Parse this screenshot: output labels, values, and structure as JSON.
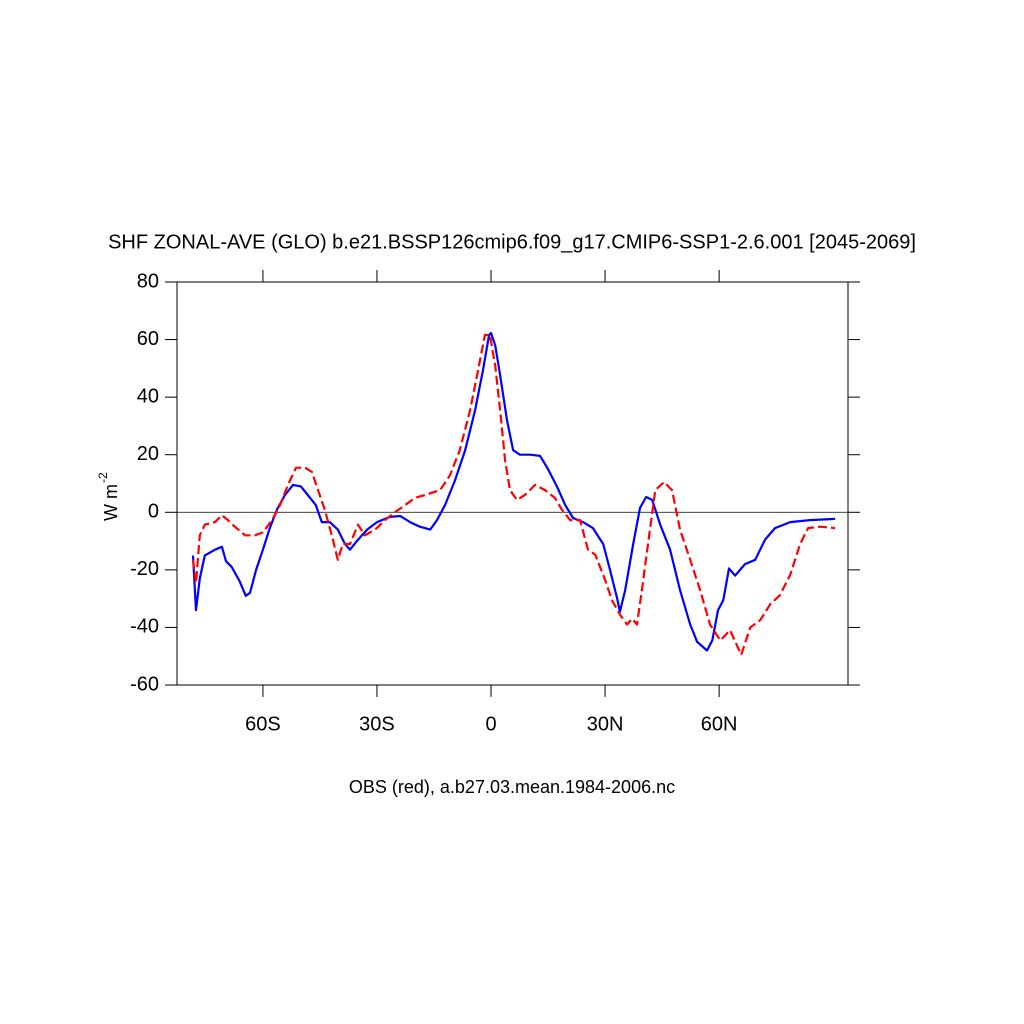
{
  "chart_data": {
    "type": "line",
    "title": "SHF ZONAL-AVE (GLO) b.e21.BSSP126cmip6.f09_g17.CMIP6-SSP1-2.6.001 [2045-2069]",
    "xlabel": "OBS (red), a.b27.03.mean.1984-2006.nc",
    "ylabel": "W m",
    "ylabel_superscript": "-2",
    "xlim": [
      -82.6,
      93.9
    ],
    "ylim": [
      -60,
      80
    ],
    "xticks": [
      {
        "value": -60,
        "label": "60S"
      },
      {
        "value": -30,
        "label": "30S"
      },
      0,
      {
        "value": 30,
        "label": "30N"
      },
      {
        "value": 60,
        "label": "60N"
      }
    ],
    "yticks": [
      -60,
      -40,
      -20,
      0,
      20,
      40,
      60,
      80
    ],
    "reference_line": 0,
    "series": [
      {
        "color": "#0000ff",
        "dash": "solid",
        "x": [
          -78.4,
          -77.6,
          -76.6,
          -75.3,
          -72.6,
          -70.8,
          -69.7,
          -68.2,
          -66.1,
          -64.5,
          -63.4,
          -61.8,
          -60,
          -58.2,
          -56.3,
          -54.2,
          -52.1,
          -50,
          -48.2,
          -46.1,
          -44.5,
          -42.4,
          -40.3,
          -38.4,
          -37.1,
          -35.3,
          -32.6,
          -30,
          -26.6,
          -23.9,
          -21.3,
          -18.7,
          -16,
          -14.2,
          -12.1,
          -9.5,
          -6.8,
          -4.2,
          -2.1,
          -0.5,
          0,
          1.1,
          2.4,
          4.2,
          5.8,
          7.6,
          10.3,
          12.9,
          15,
          17.4,
          19.5,
          21.6,
          24.2,
          26.8,
          29.5,
          31.3,
          33.2,
          33.9,
          35.3,
          37.4,
          39.2,
          40.8,
          42.4,
          44.5,
          47.1,
          49.7,
          52.4,
          54.2,
          56.8,
          58.2,
          59.7,
          61.1,
          62.6,
          64.2,
          66.8,
          69.5,
          72.1,
          74.7,
          78.7,
          83.9,
          90.5
        ],
        "values": [
          -15,
          -34,
          -23,
          -15,
          -13,
          -12,
          -17,
          -19,
          -24,
          -29,
          -28,
          -20,
          -13,
          -5.5,
          1,
          6,
          9.5,
          9,
          6,
          2.5,
          -3.4,
          -3.4,
          -6,
          -11,
          -13,
          -10,
          -6,
          -3.4,
          -1.6,
          -1.3,
          -3.4,
          -5,
          -6,
          -2.7,
          2.5,
          11,
          21.6,
          35.5,
          49.4,
          61.6,
          62.3,
          58,
          47.7,
          32,
          21.6,
          20,
          20,
          19.6,
          15,
          8.8,
          2.5,
          -2,
          -3.4,
          -5.5,
          -11,
          -20,
          -30,
          -34.6,
          -27,
          -11,
          1.5,
          5.3,
          4.3,
          -4.3,
          -13,
          -27,
          -39,
          -45,
          -48,
          -44.5,
          -34,
          -30.5,
          -19.5,
          -22,
          -18,
          -16.5,
          -9.5,
          -5.5,
          -3.4,
          -2.7,
          -2.3
        ]
      },
      {
        "color": "#ff0000",
        "dash": "dashed",
        "x": [
          -78.4,
          -77.6,
          -76.6,
          -75.3,
          -72.6,
          -70.8,
          -69.2,
          -67.4,
          -64.7,
          -62.1,
          -60,
          -57.6,
          -55.5,
          -53.4,
          -51.3,
          -48.9,
          -47.1,
          -45.5,
          -43.7,
          -41.6,
          -40.3,
          -39,
          -37.1,
          -35,
          -33.2,
          -30.5,
          -27.9,
          -25.3,
          -22.6,
          -20,
          -17.4,
          -13.4,
          -10.8,
          -8.2,
          -5.5,
          -3.4,
          -1.6,
          -0.3,
          1.1,
          2.4,
          3.7,
          5,
          6.8,
          8.9,
          11.6,
          14.2,
          16.8,
          18.7,
          20.8,
          23.4,
          25.5,
          27.4,
          30,
          31.8,
          33.9,
          35.8,
          37.1,
          38.4,
          39.7,
          41.3,
          43.2,
          45.5,
          47.6,
          49.7,
          52.4,
          55,
          57.6,
          60.3,
          62.9,
          65.8,
          68.2,
          70.8,
          73.4,
          76,
          78.7,
          81.3,
          83.4,
          86.6,
          90.5
        ],
        "values": [
          -16.5,
          -24.5,
          -8,
          -4.3,
          -3.4,
          -1,
          -2.7,
          -5,
          -8,
          -8,
          -7,
          -2.7,
          2.5,
          9.5,
          15.5,
          15.5,
          14,
          7.7,
          0.8,
          -9.5,
          -16.5,
          -11,
          -11,
          -4.3,
          -8,
          -6,
          -2.7,
          0,
          2.5,
          5,
          6,
          7.7,
          12.9,
          21.6,
          35.5,
          49.4,
          61.6,
          61.6,
          51,
          35.5,
          18,
          7.7,
          4.3,
          6,
          9.5,
          7.7,
          5,
          0.8,
          -2.7,
          -2.7,
          -13,
          -14.7,
          -23.5,
          -30.5,
          -35.5,
          -39,
          -37,
          -39,
          -27,
          -11,
          7.7,
          10.5,
          7.7,
          -6,
          -16.5,
          -27,
          -39,
          -44.5,
          -41,
          -49.5,
          -40,
          -37.5,
          -32,
          -28.8,
          -21.7,
          -11,
          -5.5,
          -5,
          -5.5
        ]
      }
    ]
  }
}
